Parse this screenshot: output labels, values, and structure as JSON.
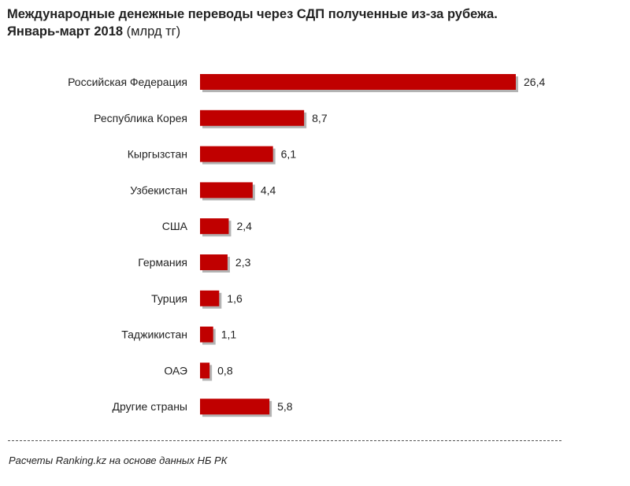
{
  "header": {
    "title_line1": "Международные денежные переводы через СДП полученные из-за рубежа.",
    "title_line2_bold": "Январь-март 2018",
    "title_line2_normal": " (млрд тг)"
  },
  "chart_data": {
    "type": "bar",
    "orientation": "horizontal",
    "title": "Международные денежные переводы через СДП полученные из-за рубежа. Январь-март 2018 (млрд тг)",
    "categories": [
      "Российская Федерация",
      "Республика Корея",
      "Кыргызстан",
      "Узбекистан",
      "США",
      "Германия",
      "Турция",
      "Таджикистан",
      "ОАЭ",
      "Другие страны"
    ],
    "values": [
      26.4,
      8.7,
      6.1,
      4.4,
      2.4,
      2.3,
      1.6,
      1.1,
      0.8,
      5.8
    ],
    "data_labels": [
      "26,4",
      "8,7",
      "6,1",
      "4,4",
      "2,4",
      "2,3",
      "1,6",
      "1,1",
      "0,8",
      "5,8"
    ],
    "xlabel": "",
    "ylabel": "",
    "xlim": [
      0,
      26.4
    ],
    "grid": false,
    "legend": "none",
    "bar_color": "#c00000",
    "shadow_color": "#b3b3b3"
  },
  "footer": {
    "source": "Расчеты Ranking.kz на основе данных НБ РК"
  }
}
